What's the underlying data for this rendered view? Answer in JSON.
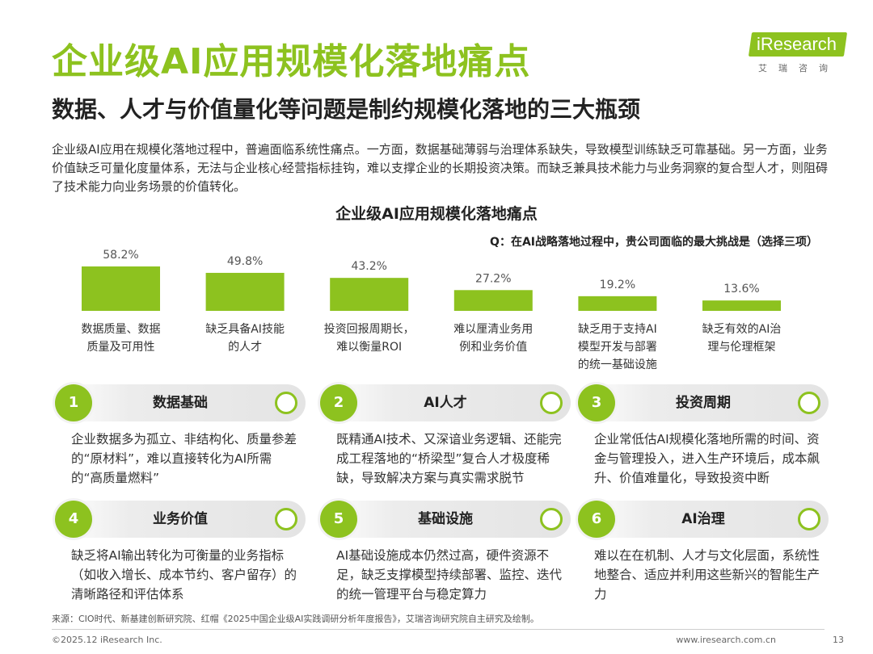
{
  "colors": {
    "accent": "#8dc21f"
  },
  "header": {
    "title": "企业级AI应用规模化落地痛点",
    "subtitle": "数据、人才与价值量化等问题是制约规模化落地的三大瓶颈",
    "logo_main": "iResearch",
    "logo_sub": "艾瑞咨询"
  },
  "intro": "企业级AI应用在规模化落地过程中，普遍面临系统性痛点。一方面，数据基础薄弱与治理体系缺失，导致模型训练缺乏可靠基础。另一方面，业务价值缺乏可量化度量体系，无法与企业核心经营指标挂钩，难以支撑企业的长期投资决策。而缺乏兼具技术能力与业务洞察的复合型人才，则阻碍了技术能力向业务场景的价值转化。",
  "chart_data": {
    "type": "bar",
    "title": "企业级AI应用规模化落地痛点",
    "question": "Q：在AI战略落地过程中，贵公司面临的最大挑战是（选择三项）",
    "categories": [
      [
        "数据质量、数据",
        "质量及可用性"
      ],
      [
        "缺乏具备AI技能",
        "的人才"
      ],
      [
        "投资回报周期长，",
        "难以衡量ROI"
      ],
      [
        "难以厘清业务用",
        "例和业务价值"
      ],
      [
        "缺乏用于支持AI",
        "模型开发与部署",
        "的统一基础设施"
      ],
      [
        "缺乏有效的AI治",
        "理与伦理框架"
      ]
    ],
    "values": [
      58.2,
      49.8,
      43.2,
      27.2,
      19.2,
      13.6
    ],
    "value_labels": [
      "58.2%",
      "49.8%",
      "43.2%",
      "27.2%",
      "19.2%",
      "13.6%"
    ],
    "unit": "%",
    "ylim": [
      0,
      58.2
    ],
    "grid": false,
    "legend": "none"
  },
  "cards": [
    {
      "num": "1",
      "title": "数据基础",
      "text": "企业数据多为孤立、非结构化、质量参差的“原材料”，难以直接转化为AI所需的“高质量燃料”"
    },
    {
      "num": "2",
      "title": "AI人才",
      "text": "既精通AI技术、又深谙业务逻辑、还能完成工程落地的“桥梁型”复合人才极度稀缺，导致解决方案与真实需求脱节"
    },
    {
      "num": "3",
      "title": "投资周期",
      "text": "企业常低估AI规模化落地所需的时间、资金与管理投入，进入生产环境后，成本飙升、价值难量化，导致投资中断"
    },
    {
      "num": "4",
      "title": "业务价值",
      "text": "缺乏将AI输出转化为可衡量的业务指标（如收入增长、成本节约、客户留存）的清晰路径和评估体系"
    },
    {
      "num": "5",
      "title": "基础设施",
      "text": "AI基础设施成本仍然过高，硬件资源不足，缺乏支撑模型持续部署、监控、迭代的统一管理平台与稳定算力"
    },
    {
      "num": "6",
      "title": "AI治理",
      "text": "难以在在机制、人才与文化层面，系统性地整合、适应并利用这些新兴的智能生产力"
    }
  ],
  "footer": {
    "source": "来源：CIO时代、新基建创新研究院、红帽《2025中国企业级AI实践调研分析年度报告》，艾瑞咨询研究院自主研究及绘制。",
    "copyright": "©2025.12 iResearch Inc.",
    "site": "www.iresearch.com.cn",
    "page": "13"
  }
}
